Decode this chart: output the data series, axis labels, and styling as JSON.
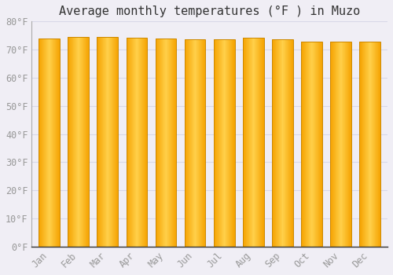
{
  "title": "Average monthly temperatures (°F ) in Muzo",
  "months": [
    "Jan",
    "Feb",
    "Mar",
    "Apr",
    "May",
    "Jun",
    "Jul",
    "Aug",
    "Sep",
    "Oct",
    "Nov",
    "Dec"
  ],
  "values": [
    73.9,
    74.5,
    74.5,
    74.1,
    73.9,
    73.6,
    73.8,
    74.1,
    73.8,
    72.9,
    72.9,
    72.9
  ],
  "bar_color_center": "#FFD04A",
  "bar_color_edge": "#F5A200",
  "bar_outline_color": "#CC8800",
  "ylim": [
    0,
    80
  ],
  "ytick_step": 10,
  "background_color": "#f0eef5",
  "grid_color": "#d8d8e8",
  "title_fontsize": 11,
  "tick_fontsize": 8.5,
  "tick_color": "#999999",
  "spine_color": "#333333",
  "bar_width": 0.72
}
